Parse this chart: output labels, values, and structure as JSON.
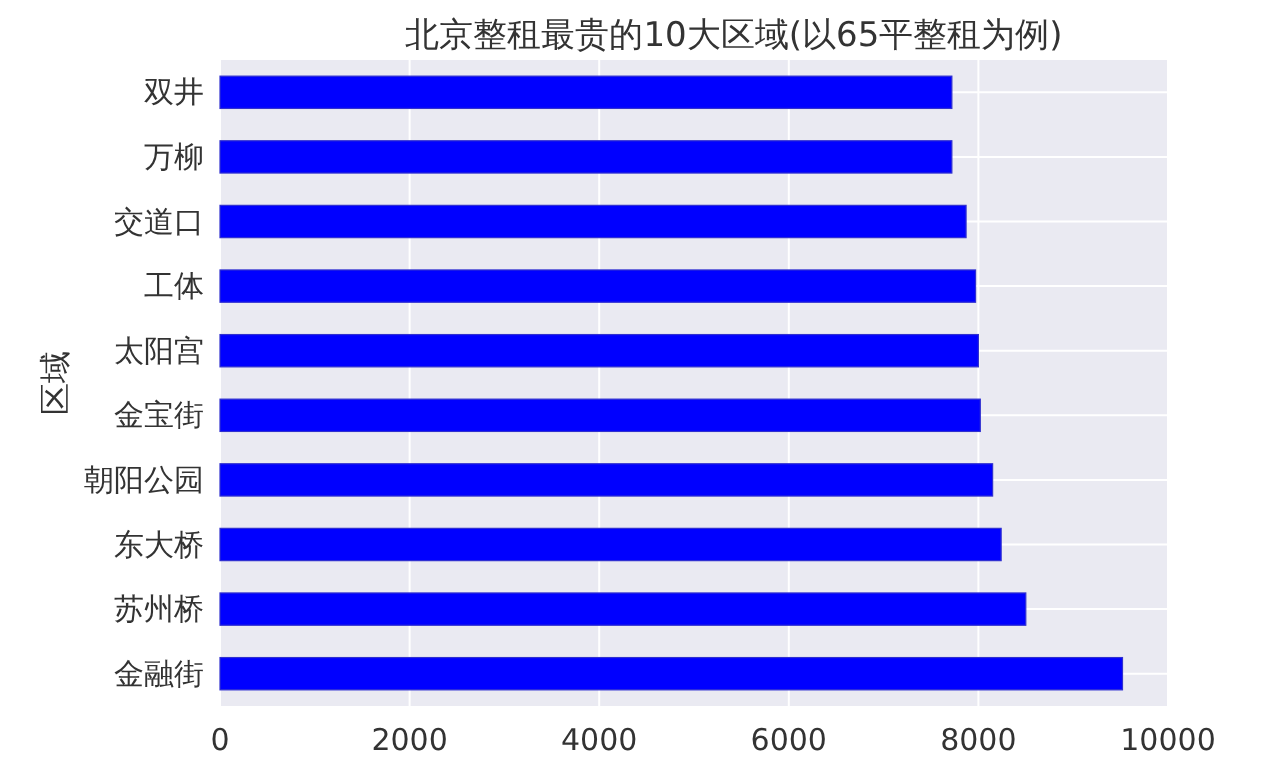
{
  "chart_data": {
    "type": "bar",
    "orientation": "horizontal",
    "title": "北京整租最贵的10大区域(以65平整租为例)",
    "ylabel": "区域",
    "categories": [
      "双井",
      "万柳",
      "交道口",
      "工体",
      "太阳宫",
      "金宝街",
      "朝阳公园",
      "东大桥",
      "苏州桥",
      "金融街"
    ],
    "values": [
      7720,
      7720,
      7870,
      7970,
      8000,
      8020,
      8150,
      8240,
      8500,
      9520
    ],
    "color": "#0000ff",
    "xlim": [
      0,
      10000
    ],
    "xticks": [
      0,
      2000,
      4000,
      6000,
      8000,
      10000
    ],
    "grid": true
  }
}
